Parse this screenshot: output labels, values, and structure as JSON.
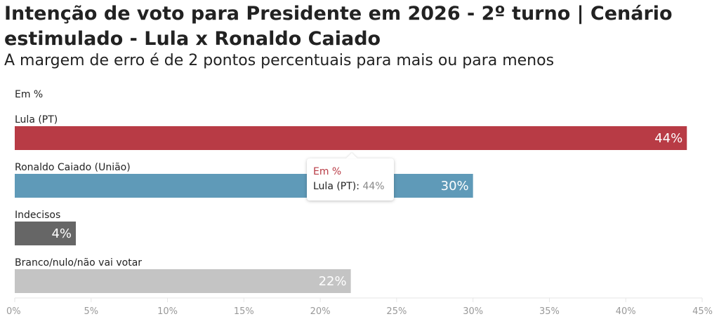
{
  "title": "Intenção de voto para Presidente em 2026 - 2º turno | Cenário estimulado - Lula x Ronaldo Caiado",
  "subtitle": "A margem de erro é de 2 pontos percentuais para mais ou para menos",
  "unit_label": "Em %",
  "tooltip": {
    "title": "Em %",
    "series_label": "Lula (PT):",
    "value": "44%"
  },
  "chart_data": {
    "type": "bar",
    "orientation": "horizontal",
    "categories": [
      "Lula (PT)",
      "Ronaldo Caiado (União)",
      "Indecisos",
      "Branco/nulo/não vai votar"
    ],
    "values": [
      44,
      30,
      4,
      22
    ],
    "value_labels": [
      "44%",
      "30%",
      "4%",
      "22%"
    ],
    "colors": [
      "#b83b45",
      "#5f9ab8",
      "#666666",
      "#c4c4c4"
    ],
    "xlim": [
      0,
      45
    ],
    "ticks": [
      0,
      5,
      10,
      15,
      20,
      25,
      30,
      35,
      40,
      45
    ],
    "tick_labels": [
      "0%",
      "5%",
      "10%",
      "15%",
      "20%",
      "25%",
      "30%",
      "35%",
      "40%",
      "45%"
    ],
    "grid": false
  }
}
